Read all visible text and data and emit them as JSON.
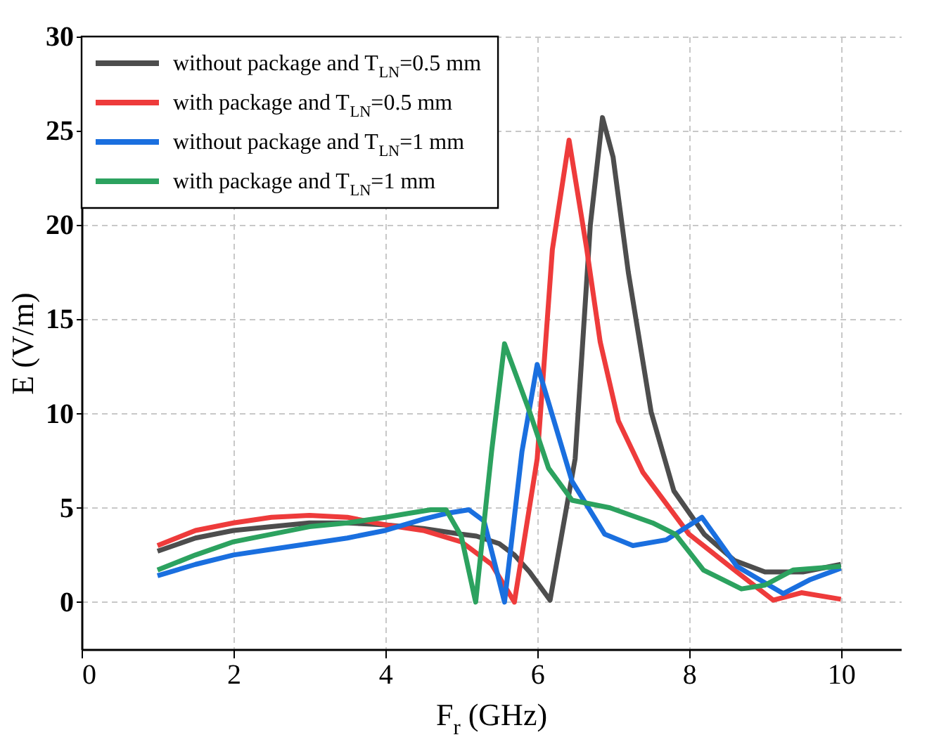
{
  "chart_data": {
    "type": "line",
    "xlabel": "F$_{r}$ (GHz)",
    "ylabel": "E (V/m)",
    "xlim": [
      0,
      10.8
    ],
    "ylim": [
      -2.5,
      30
    ],
    "xticks": [
      0,
      2,
      4,
      6,
      8,
      10
    ],
    "yticks": [
      0,
      5,
      10,
      15,
      20,
      25,
      30
    ],
    "grid": true,
    "legend": "top left",
    "marker": "none",
    "line_style": "solid",
    "series": [
      {
        "name": "without package and T$_{LN}$=0.5 mm",
        "color": "#4d4d4d",
        "x": [
          1,
          1.5,
          2,
          2.5,
          3,
          3.5,
          4,
          4.5,
          5,
          5.2,
          5.5,
          5.7,
          5.9,
          6.17,
          6.5,
          6.7,
          6.86,
          7.0,
          7.2,
          7.5,
          7.8,
          8.2,
          8.6,
          9,
          9.5,
          10
        ],
        "values": [
          2.7,
          3.4,
          3.8,
          4.0,
          4.2,
          4.2,
          4.1,
          3.9,
          3.6,
          3.5,
          3.1,
          2.5,
          1.6,
          0.1,
          7.6,
          20,
          25.7,
          23.6,
          17.5,
          10.1,
          5.9,
          3.6,
          2.2,
          1.6,
          1.6,
          2.0
        ]
      },
      {
        "name": "with package and T$_{LN}$=0.5 mm",
        "color": "#ee3b3b",
        "x": [
          1,
          1.5,
          2,
          2.5,
          3,
          3.5,
          4,
          4.5,
          5,
          5.4,
          5.7,
          6.0,
          6.2,
          6.42,
          6.65,
          6.83,
          7.07,
          7.39,
          8.0,
          8.63,
          9.11,
          9.48,
          10
        ],
        "values": [
          3.0,
          3.8,
          4.2,
          4.5,
          4.6,
          4.5,
          4.1,
          3.8,
          3.2,
          2.0,
          0,
          7.6,
          18.7,
          24.5,
          18.8,
          13.8,
          9.6,
          6.9,
          3.6,
          1.6,
          0.1,
          0.5,
          0.15
        ]
      },
      {
        "name": "without package and T$_{LN}$=1 mm",
        "color": "#1a6fdf",
        "x": [
          1,
          1.5,
          2,
          2.5,
          3,
          3.5,
          4,
          4.5,
          4.8,
          5.1,
          5.3,
          5.57,
          5.8,
          6.0,
          6.46,
          6.89,
          7.26,
          7.7,
          8.17,
          8.63,
          9.24,
          9.6,
          10
        ],
        "values": [
          1.4,
          2.0,
          2.5,
          2.8,
          3.1,
          3.4,
          3.8,
          4.4,
          4.7,
          4.9,
          4.3,
          0,
          8,
          12.6,
          6.4,
          3.6,
          3.0,
          3.3,
          4.5,
          1.9,
          0.45,
          1.2,
          1.8
        ]
      },
      {
        "name": "with package and T$_{LN}$=1 mm",
        "color": "#2ca25f",
        "x": [
          1,
          1.5,
          2,
          2.5,
          3,
          3.5,
          4,
          4.3,
          4.6,
          4.8,
          5.0,
          5.19,
          5.4,
          5.57,
          5.9,
          6.15,
          6.46,
          6.96,
          7.52,
          7.82,
          8.19,
          8.69,
          9.0,
          9.37,
          10
        ],
        "values": [
          1.7,
          2.5,
          3.2,
          3.6,
          4.0,
          4.2,
          4.5,
          4.7,
          4.9,
          4.9,
          3.5,
          0,
          8,
          13.7,
          10.1,
          7.1,
          5.4,
          5.0,
          4.2,
          3.6,
          1.7,
          0.7,
          0.9,
          1.7,
          1.9
        ]
      }
    ]
  }
}
